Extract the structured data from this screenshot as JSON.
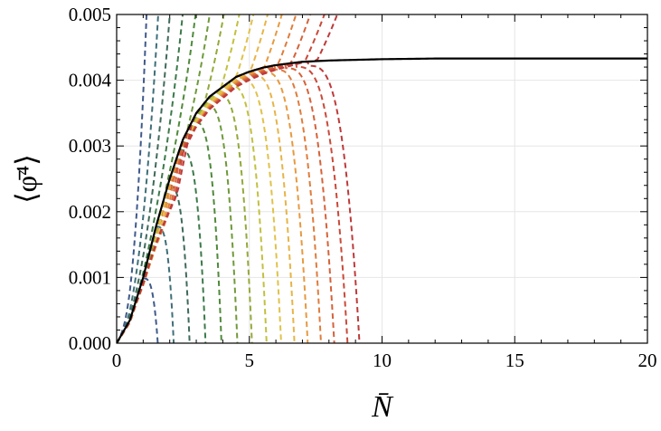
{
  "chart_data": {
    "type": "line",
    "title": "",
    "xlabel": "N̄",
    "ylabel": "⟨φ̄⁴⟩",
    "xlim": [
      0,
      20
    ],
    "ylim": [
      0,
      0.005
    ],
    "x_ticks": [
      0,
      5,
      10,
      15,
      20
    ],
    "x_tick_labels": [
      "0",
      "5",
      "10",
      "15",
      "20"
    ],
    "y_ticks": [
      0,
      0.001,
      0.002,
      0.003,
      0.004,
      0.005
    ],
    "y_tick_labels": [
      "0.000",
      "0.001",
      "0.002",
      "0.003",
      "0.004",
      "0.005"
    ],
    "grid": true,
    "legend": "none",
    "limit_curve": {
      "style": "solid",
      "color": "#000000",
      "asymptote": 0.00433,
      "points": [
        [
          0,
          0
        ],
        [
          0.5,
          0.00035
        ],
        [
          1,
          0.001
        ],
        [
          1.5,
          0.0018
        ],
        [
          2,
          0.0025
        ],
        [
          2.5,
          0.0031
        ],
        [
          3,
          0.0035
        ],
        [
          3.5,
          0.00375
        ],
        [
          4,
          0.0039
        ],
        [
          4.5,
          0.00405
        ],
        [
          5,
          0.00413
        ],
        [
          5.5,
          0.00419
        ],
        [
          6,
          0.00423
        ],
        [
          7,
          0.00428
        ],
        [
          8,
          0.0043
        ],
        [
          10,
          0.00432
        ],
        [
          12,
          0.00433
        ],
        [
          15,
          0.00433
        ],
        [
          20,
          0.00433
        ]
      ]
    },
    "dashed_series": [
      {
        "peak_x": 1.0,
        "end_x": 1.55,
        "color": "#3f5a8a"
      },
      {
        "peak_x": 1.5,
        "end_x": 2.15,
        "color": "#3f6f78"
      },
      {
        "peak_x": 1.95,
        "end_x": 2.75,
        "color": "#3f6a5a"
      },
      {
        "peak_x": 2.4,
        "end_x": 3.35,
        "color": "#3c7a4a"
      },
      {
        "peak_x": 2.9,
        "end_x": 3.95,
        "color": "#4f8a3a"
      },
      {
        "peak_x": 3.35,
        "end_x": 4.55,
        "color": "#6f9a3a"
      },
      {
        "peak_x": 3.8,
        "end_x": 5.1,
        "color": "#93aa3a"
      },
      {
        "peak_x": 4.25,
        "end_x": 5.65,
        "color": "#c2c040"
      },
      {
        "peak_x": 4.65,
        "end_x": 6.2,
        "color": "#e0c24a"
      },
      {
        "peak_x": 5.1,
        "end_x": 6.7,
        "color": "#e7b448"
      },
      {
        "peak_x": 5.5,
        "end_x": 7.2,
        "color": "#e69a40"
      },
      {
        "peak_x": 5.95,
        "end_x": 7.7,
        "color": "#df7c3c"
      },
      {
        "peak_x": 6.35,
        "end_x": 8.2,
        "color": "#d6623a"
      },
      {
        "peak_x": 6.75,
        "end_x": 8.7,
        "color": "#c94a3a"
      },
      {
        "peak_x": 7.2,
        "end_x": 9.15,
        "color": "#be3a3a"
      }
    ],
    "steep_series": [
      {
        "reach_top_x": 1.15,
        "color": "#3f5a8a"
      },
      {
        "reach_top_x": 1.6,
        "color": "#3f6f78"
      },
      {
        "reach_top_x": 2.05,
        "color": "#3f6a5a"
      },
      {
        "reach_top_x": 2.55,
        "color": "#3c7a4a"
      },
      {
        "reach_top_x": 3.05,
        "color": "#4f8a3a"
      },
      {
        "reach_top_x": 3.6,
        "color": "#6f9a3a"
      },
      {
        "reach_top_x": 4.15,
        "color": "#93aa3a"
      },
      {
        "reach_top_x": 4.75,
        "color": "#c2c040"
      },
      {
        "reach_top_x": 5.3,
        "color": "#e0c24a"
      },
      {
        "reach_top_x": 5.85,
        "color": "#e7b448"
      },
      {
        "reach_top_x": 6.4,
        "color": "#e69a40"
      },
      {
        "reach_top_x": 6.95,
        "color": "#df7c3c"
      },
      {
        "reach_top_x": 7.5,
        "color": "#d6623a"
      },
      {
        "reach_top_x": 8.05,
        "color": "#c94a3a"
      },
      {
        "reach_top_x": 8.55,
        "color": "#be3a3a"
      }
    ]
  }
}
